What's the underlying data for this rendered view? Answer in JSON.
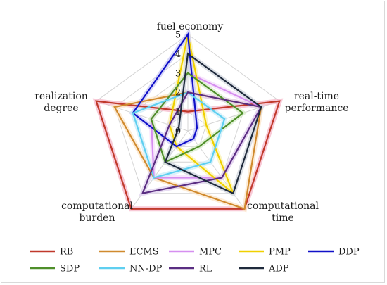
{
  "chart_data": {
    "type": "radar",
    "title": "",
    "axes": [
      [
        "fuel economy"
      ],
      [
        "real-time",
        "performance"
      ],
      [
        "computational",
        "time"
      ],
      [
        "computational",
        "burden"
      ],
      [
        "realization",
        "degree"
      ]
    ],
    "rlim": [
      0,
      5
    ],
    "ticks": [
      "0",
      "1",
      "2",
      "3",
      "4",
      "5"
    ],
    "grid": true,
    "legend_position": "bottom",
    "series": [
      {
        "name": "RB",
        "color": "#c0392b",
        "glow": "#f5b7c8",
        "values": [
          1,
          5,
          5,
          5,
          5
        ]
      },
      {
        "name": "ECMS",
        "color": "#d08a2e",
        "glow": "#fce6c8",
        "values": [
          2,
          4,
          5,
          3,
          4
        ]
      },
      {
        "name": "MPC",
        "color": "#d68ff0",
        "glow": "#f4ddfb",
        "values": [
          3,
          4,
          3,
          3,
          2
        ]
      },
      {
        "name": "PMP",
        "color": "#f0d000",
        "glow": "#fbf3b0",
        "values": [
          5,
          1,
          4,
          1,
          1
        ]
      },
      {
        "name": "DDP",
        "color": "#1010c8",
        "glow": "#c8c8f5",
        "values": [
          5,
          0.5,
          0.5,
          1,
          3
        ]
      },
      {
        "name": "SDP",
        "color": "#4f8f2a",
        "glow": "#d7ecc8",
        "values": [
          3,
          3,
          1,
          2,
          2
        ]
      },
      {
        "name": "NN-DP",
        "color": "#5fcff0",
        "glow": "#cdeefa",
        "values": [
          2,
          2,
          2,
          3,
          3
        ]
      },
      {
        "name": "RL",
        "color": "#5a2e82",
        "glow": "#dfd0ee",
        "values": [
          2,
          4,
          3,
          4,
          1
        ]
      },
      {
        "name": "ADP",
        "color": "#1f2a3c",
        "glow": "#cfd4dc",
        "values": [
          4,
          4,
          4,
          2,
          0.5
        ]
      }
    ]
  }
}
